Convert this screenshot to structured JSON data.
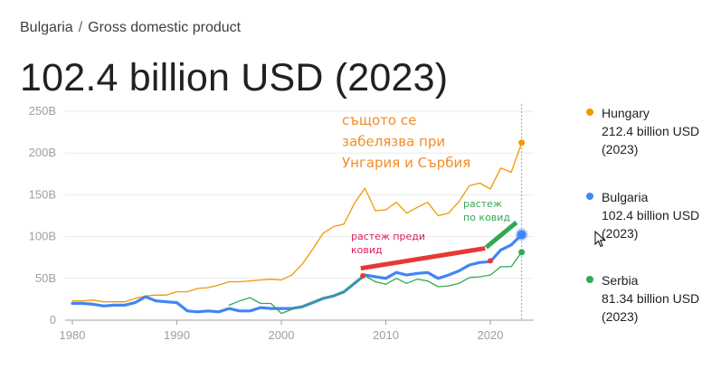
{
  "breadcrumb": {
    "country": "Bulgaria",
    "separator": "/",
    "topic": "Gross domestic product"
  },
  "headline": "102.4 billion USD (2023)",
  "legend": [
    {
      "name": "Hungary",
      "value": "212.4 billion USD (2023)",
      "color": "#f29900"
    },
    {
      "name": "Bulgaria",
      "value": "102.4 billion USD (2023)",
      "color": "#4285f4"
    },
    {
      "name": "Serbia",
      "value": "81.34 billion USD (2023)",
      "color": "#34a853"
    }
  ],
  "annotations": {
    "orange_note": [
      "същото се",
      "забелязва при",
      "Унгария и Сърбия"
    ],
    "red_note": [
      "растеж преди",
      "ковид"
    ],
    "green_note": [
      "растеж",
      "по ковид"
    ],
    "colors": {
      "orange": "#f28c28",
      "red": "#d81b60",
      "green": "#34a853"
    }
  },
  "chart_data": {
    "type": "line",
    "x_ticks": [
      1980,
      1990,
      2000,
      2010,
      2020
    ],
    "y_ticks": [
      "0",
      "50B",
      "100B",
      "150B",
      "200B",
      "250B"
    ],
    "y_tick_values": [
      0,
      50,
      100,
      150,
      200,
      250
    ],
    "xlim": [
      1980,
      2024
    ],
    "ylim": [
      0,
      250
    ],
    "grid": true,
    "highlight_year": 2023,
    "series": [
      {
        "name": "Hungary",
        "color": "#f29900",
        "x": [
          1980,
          1981,
          1982,
          1983,
          1984,
          1985,
          1986,
          1987,
          1988,
          1989,
          1990,
          1991,
          1992,
          1993,
          1994,
          1995,
          1996,
          1997,
          1998,
          1999,
          2000,
          2001,
          2002,
          2003,
          2004,
          2005,
          2006,
          2007,
          2008,
          2009,
          2010,
          2011,
          2012,
          2013,
          2014,
          2015,
          2016,
          2017,
          2018,
          2019,
          2020,
          2021,
          2022,
          2023
        ],
        "y": [
          23,
          23,
          24,
          22,
          22,
          22,
          26,
          29,
          30,
          30,
          34,
          34,
          38,
          39,
          42,
          46,
          46,
          47,
          48,
          49,
          48,
          54,
          67,
          85,
          104,
          112,
          115,
          140,
          158,
          131,
          132,
          141,
          128,
          135,
          141,
          125,
          128,
          142,
          161,
          164,
          157,
          182,
          177,
          212
        ]
      },
      {
        "name": "Bulgaria",
        "color": "#4285f4",
        "x": [
          1980,
          1981,
          1982,
          1983,
          1984,
          1985,
          1986,
          1987,
          1988,
          1989,
          1990,
          1991,
          1992,
          1993,
          1994,
          1995,
          1996,
          1997,
          1998,
          1999,
          2000,
          2001,
          2002,
          2003,
          2004,
          2005,
          2006,
          2007,
          2008,
          2009,
          2010,
          2011,
          2012,
          2013,
          2014,
          2015,
          2016,
          2017,
          2018,
          2019,
          2020,
          2021,
          2022,
          2023
        ],
        "y": [
          20,
          20,
          19,
          17,
          18,
          18,
          21,
          28,
          23,
          22,
          21,
          11,
          10,
          11,
          10,
          14,
          11,
          11,
          15,
          14,
          14,
          14,
          16,
          21,
          26,
          29,
          34,
          44,
          54,
          52,
          50,
          57,
          54,
          56,
          57,
          50,
          54,
          59,
          66,
          69,
          70,
          84,
          90,
          102.4
        ]
      },
      {
        "name": "Serbia",
        "color": "#34a853",
        "x": [
          1995,
          1996,
          1997,
          1998,
          1999,
          2000,
          2001,
          2002,
          2003,
          2004,
          2005,
          2006,
          2007,
          2008,
          2009,
          2010,
          2011,
          2012,
          2013,
          2014,
          2015,
          2016,
          2017,
          2018,
          2019,
          2020,
          2021,
          2022,
          2023
        ],
        "y": [
          18,
          23,
          27,
          20,
          20,
          8,
          13,
          17,
          22,
          27,
          28,
          34,
          44,
          53,
          46,
          43,
          50,
          44,
          49,
          47,
          40,
          41,
          44,
          51,
          52,
          54,
          64,
          64,
          81.34
        ]
      }
    ],
    "trend_lines": [
      {
        "color": "#e53935",
        "x": [
          2007.6,
          2019.5
        ],
        "y": [
          62,
          86
        ]
      },
      {
        "color": "#34a853",
        "x": [
          2019.6,
          2022.5
        ],
        "y": [
          87,
          117
        ]
      }
    ],
    "markers": [
      {
        "color": "#e53935",
        "x": 2007.8,
        "y": 53
      },
      {
        "color": "#e53935",
        "x": 2020,
        "y": 71
      }
    ],
    "end_points": [
      {
        "color": "#f29900",
        "x": 2023,
        "y": 212.4
      },
      {
        "color": "#4285f4",
        "x": 2023,
        "y": 102.4
      },
      {
        "color": "#34a853",
        "x": 2023,
        "y": 81.34
      }
    ]
  }
}
